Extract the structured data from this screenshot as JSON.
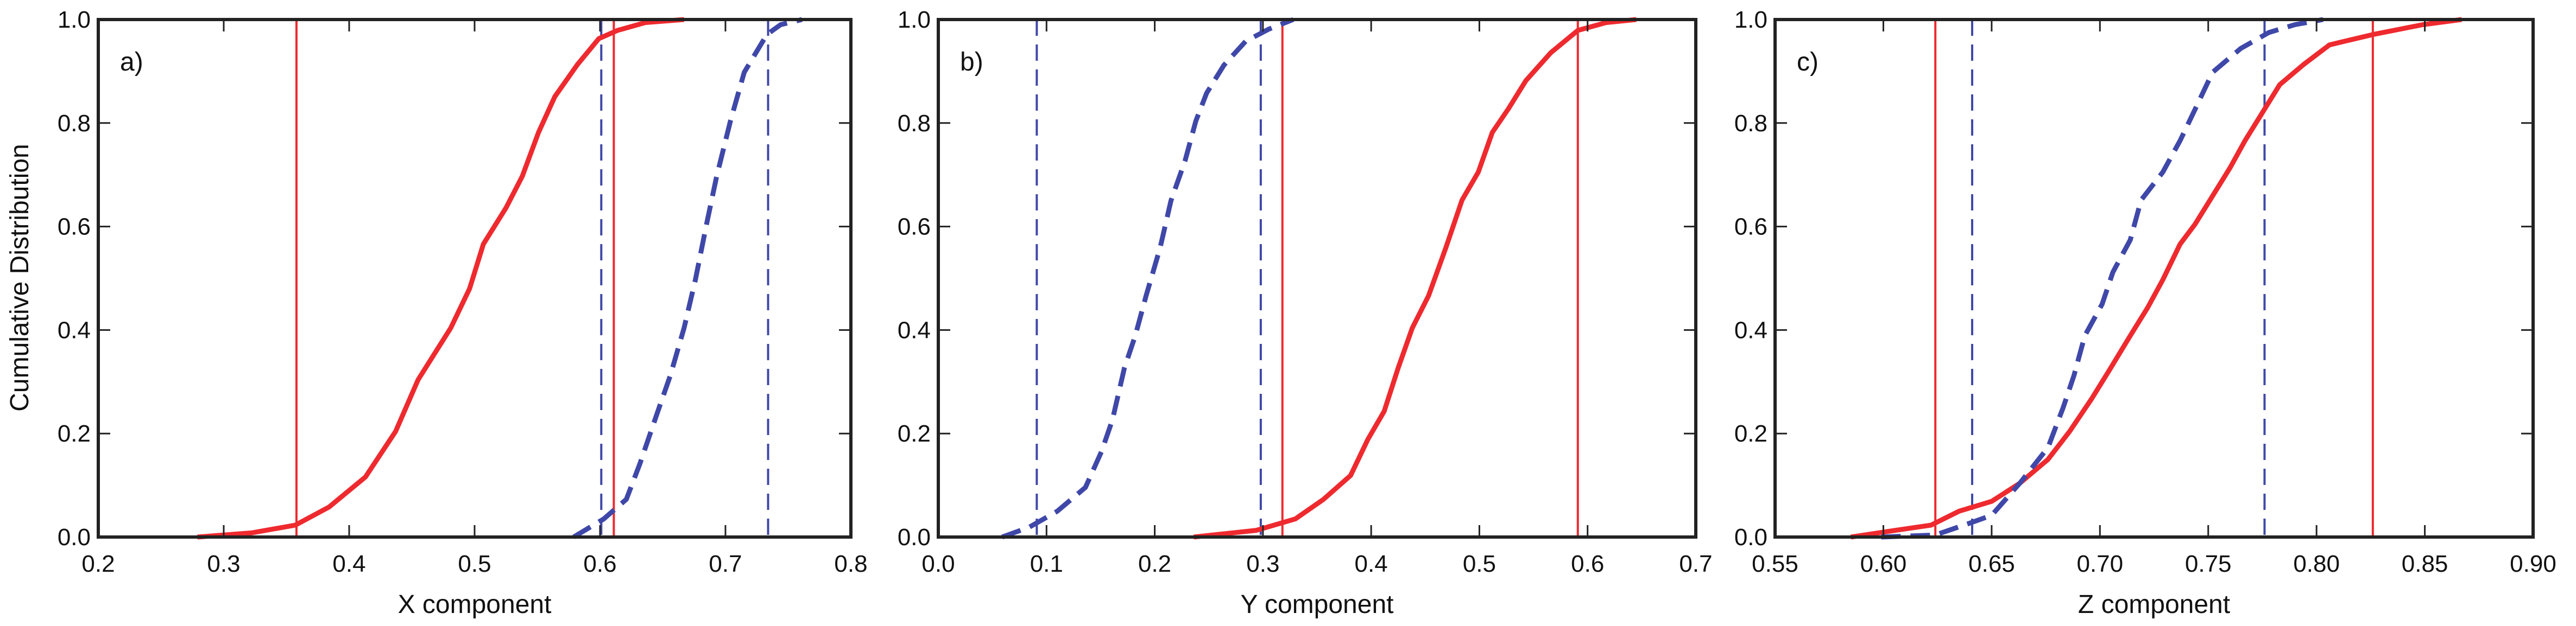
{
  "chart_data": [
    {
      "type": "line",
      "panel_label": "a)",
      "xlabel": "X component",
      "ylabel": "Cumulative Distribution",
      "xlim": [
        0.2,
        0.8
      ],
      "ylim": [
        0.0,
        1.0
      ],
      "xticks": [
        "0.2",
        "0.3",
        "0.4",
        "0.5",
        "0.6",
        "0.7",
        "0.8"
      ],
      "yticks": [
        "0.0",
        "0.2",
        "0.4",
        "0.6",
        "0.8",
        "1.0"
      ],
      "grid": false,
      "series": [
        {
          "color": "#ee2a2f",
          "style": "solid",
          "x": [
            0.279,
            0.322,
            0.357,
            0.384,
            0.413,
            0.437,
            0.455,
            0.481,
            0.496,
            0.507,
            0.525,
            0.538,
            0.551,
            0.564,
            0.582,
            0.599,
            0.614,
            0.636,
            0.667
          ],
          "y": [
            0,
            0.008,
            0.023,
            0.058,
            0.116,
            0.204,
            0.304,
            0.404,
            0.48,
            0.566,
            0.636,
            0.697,
            0.782,
            0.851,
            0.913,
            0.963,
            0.979,
            0.994,
            1
          ]
        },
        {
          "color": "#3f48a8",
          "style": "dashed",
          "x": [
            0.579,
            0.603,
            0.621,
            0.632,
            0.645,
            0.656,
            0.667,
            0.676,
            0.685,
            0.693,
            0.704,
            0.715,
            0.733,
            0.744,
            0.761
          ],
          "y": [
            0,
            0.035,
            0.073,
            0.143,
            0.235,
            0.312,
            0.404,
            0.497,
            0.605,
            0.697,
            0.804,
            0.898,
            0.971,
            0.99,
            1
          ]
        }
      ],
      "vlines": [
        {
          "x": 0.358,
          "color": "#ee2a2f",
          "style": "solid"
        },
        {
          "x": 0.611,
          "color": "#ee2a2f",
          "style": "solid"
        },
        {
          "x": 0.601,
          "color": "#3f48a8",
          "style": "dashed"
        },
        {
          "x": 0.734,
          "color": "#3f48a8",
          "style": "dashed"
        }
      ]
    },
    {
      "type": "line",
      "panel_label": "b)",
      "xlabel": "Y component",
      "xlim": [
        0.0,
        0.7
      ],
      "ylim": [
        0.0,
        1.0
      ],
      "xticks": [
        "0.0",
        "0.1",
        "0.2",
        "0.3",
        "0.4",
        "0.5",
        "0.6",
        "0.7"
      ],
      "yticks": [
        "0.0",
        "0.2",
        "0.4",
        "0.6",
        "0.8",
        "1.0"
      ],
      "grid": false,
      "series": [
        {
          "color": "#3f48a8",
          "style": "dashed",
          "x": [
            0.059,
            0.084,
            0.11,
            0.136,
            0.151,
            0.161,
            0.172,
            0.182,
            0.192,
            0.205,
            0.215,
            0.228,
            0.238,
            0.248,
            0.264,
            0.284,
            0.305,
            0.328
          ],
          "y": [
            0,
            0.019,
            0.05,
            0.096,
            0.166,
            0.227,
            0.327,
            0.389,
            0.466,
            0.559,
            0.65,
            0.727,
            0.804,
            0.858,
            0.912,
            0.958,
            0.981,
            1
          ]
        },
        {
          "color": "#ee2a2f",
          "style": "solid",
          "x": [
            0.236,
            0.294,
            0.33,
            0.356,
            0.381,
            0.397,
            0.412,
            0.425,
            0.438,
            0.453,
            0.469,
            0.484,
            0.499,
            0.512,
            0.527,
            0.543,
            0.566,
            0.591,
            0.617,
            0.645
          ],
          "y": [
            0,
            0.013,
            0.035,
            0.073,
            0.119,
            0.189,
            0.243,
            0.327,
            0.404,
            0.466,
            0.559,
            0.651,
            0.705,
            0.782,
            0.828,
            0.882,
            0.936,
            0.979,
            0.994,
            1
          ]
        }
      ],
      "vlines": [
        {
          "x": 0.091,
          "color": "#3f48a8",
          "style": "dashed"
        },
        {
          "x": 0.298,
          "color": "#3f48a8",
          "style": "dashed"
        },
        {
          "x": 0.318,
          "color": "#ee2a2f",
          "style": "solid"
        },
        {
          "x": 0.591,
          "color": "#ee2a2f",
          "style": "solid"
        }
      ]
    },
    {
      "type": "line",
      "panel_label": "c)",
      "xlabel": "Z component",
      "xlim": [
        0.55,
        0.9
      ],
      "ylim": [
        0.0,
        1.0
      ],
      "xticks": [
        "0.55",
        "0.60",
        "0.65",
        "0.70",
        "0.75",
        "0.80",
        "0.85",
        "0.90"
      ],
      "yticks": [
        "0.0",
        "0.2",
        "0.4",
        "0.6",
        "0.8",
        "1.0"
      ],
      "grid": false,
      "series": [
        {
          "color": "#ee2a2f",
          "style": "solid",
          "x": [
            0.585,
            0.604,
            0.622,
            0.635,
            0.65,
            0.663,
            0.676,
            0.686,
            0.696,
            0.704,
            0.714,
            0.722,
            0.729,
            0.737,
            0.744,
            0.752,
            0.76,
            0.767,
            0.775,
            0.783,
            0.794,
            0.806,
            0.826,
            0.849,
            0.867
          ],
          "y": [
            0,
            0.012,
            0.023,
            0.05,
            0.069,
            0.104,
            0.15,
            0.204,
            0.266,
            0.32,
            0.389,
            0.443,
            0.497,
            0.566,
            0.605,
            0.659,
            0.713,
            0.766,
            0.82,
            0.874,
            0.913,
            0.951,
            0.971,
            0.99,
            1
          ]
        },
        {
          "color": "#3f48a8",
          "style": "dashed",
          "x": [
            0.599,
            0.624,
            0.64,
            0.65,
            0.663,
            0.676,
            0.683,
            0.688,
            0.693,
            0.701,
            0.706,
            0.714,
            0.719,
            0.729,
            0.737,
            0.745,
            0.752,
            0.765,
            0.778,
            0.79,
            0.803
          ],
          "y": [
            0,
            0.004,
            0.027,
            0.042,
            0.104,
            0.173,
            0.25,
            0.312,
            0.389,
            0.45,
            0.512,
            0.574,
            0.651,
            0.705,
            0.766,
            0.836,
            0.898,
            0.944,
            0.975,
            0.99,
            1
          ]
        }
      ],
      "vlines": [
        {
          "x": 0.624,
          "color": "#ee2a2f",
          "style": "solid"
        },
        {
          "x": 0.826,
          "color": "#ee2a2f",
          "style": "solid"
        },
        {
          "x": 0.641,
          "color": "#3f48a8",
          "style": "dashed"
        },
        {
          "x": 0.776,
          "color": "#3f48a8",
          "style": "dashed"
        }
      ]
    }
  ]
}
